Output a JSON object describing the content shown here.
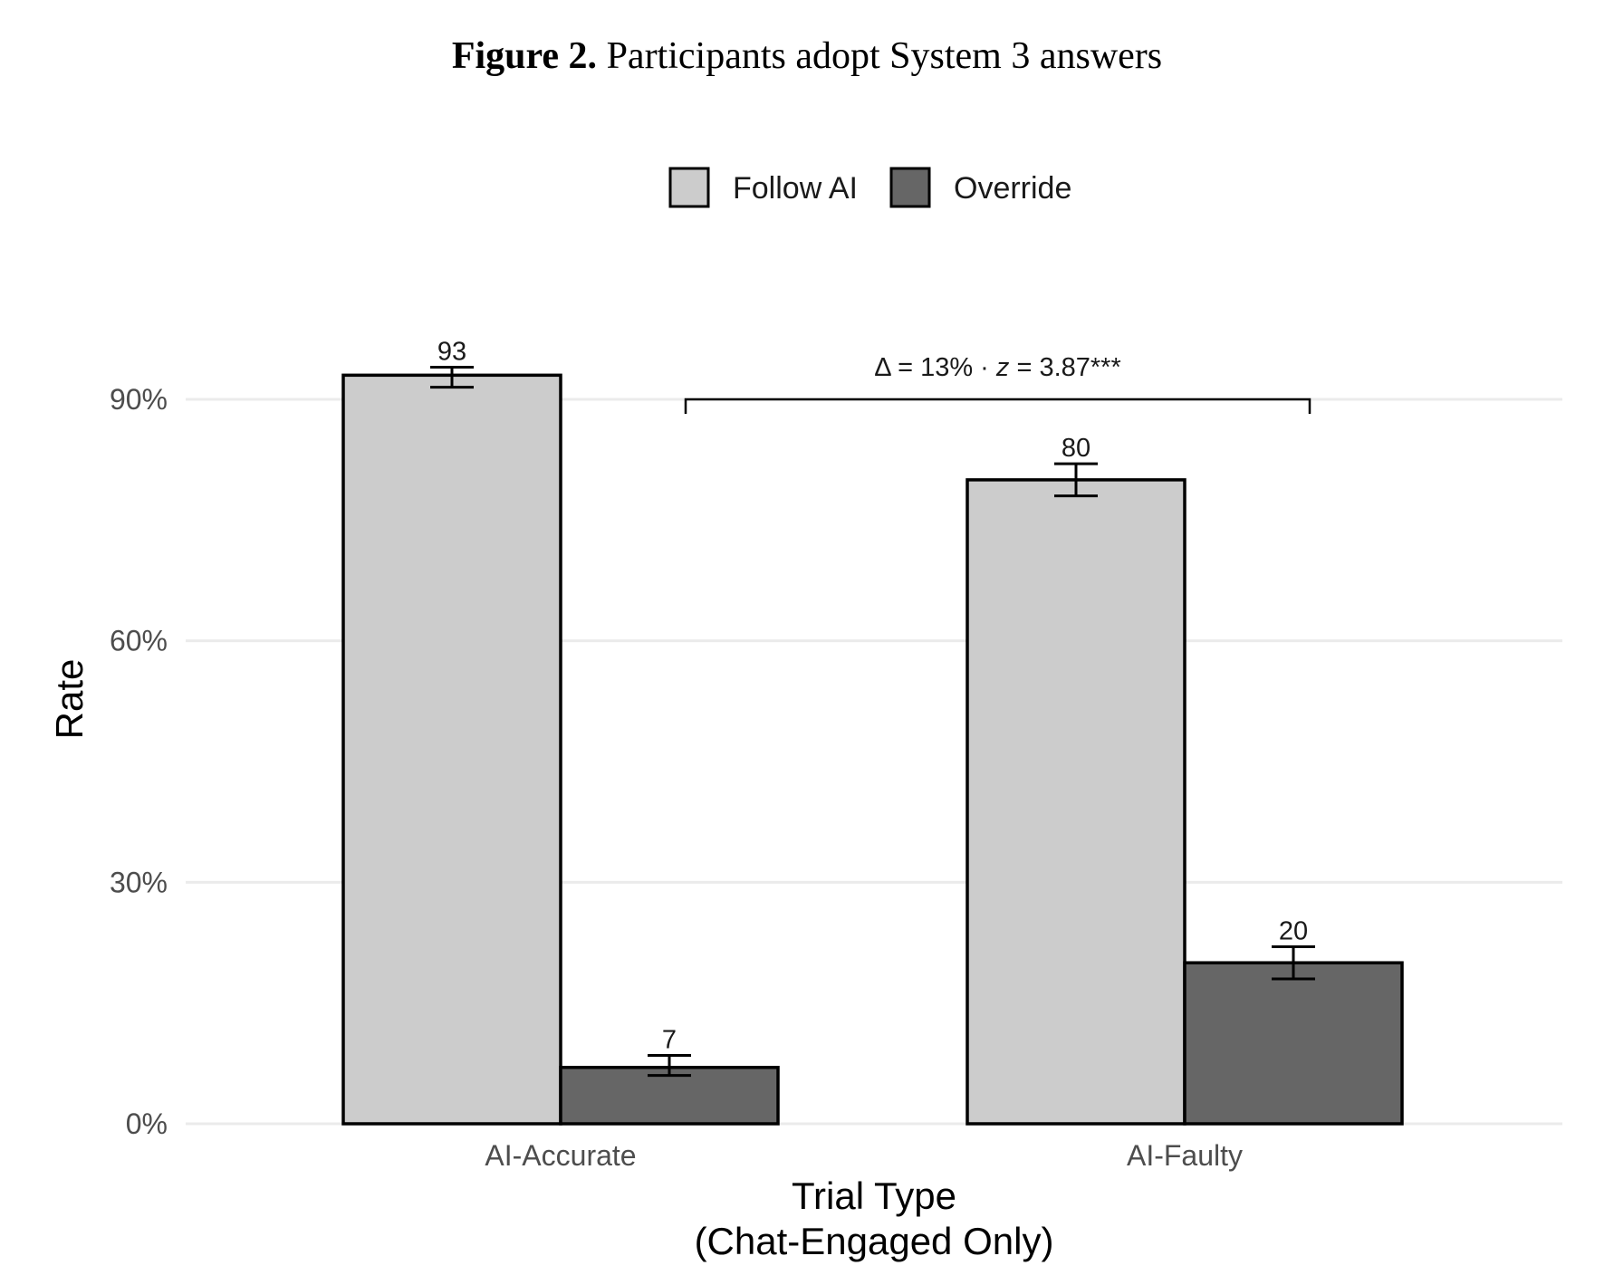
{
  "figure": {
    "label": "Figure 2.",
    "caption": "Participants adopt System 3 answers"
  },
  "chart_data": {
    "type": "bar",
    "title": "",
    "xlabel_lines": [
      "Trial Type",
      "(Chat-Engaged Only)"
    ],
    "ylabel": "Rate",
    "ylim": [
      0,
      100
    ],
    "yticks": [
      {
        "value": 0,
        "label": "0%"
      },
      {
        "value": 30,
        "label": "30%"
      },
      {
        "value": 60,
        "label": "60%"
      },
      {
        "value": 90,
        "label": "90%"
      }
    ],
    "grid": "horizontal",
    "legend_position": "top",
    "categories": [
      "AI-Accurate",
      "AI-Faulty"
    ],
    "series": [
      {
        "name": "Follow AI",
        "color": "#cccccc",
        "values": [
          93,
          80
        ],
        "labels": [
          "93",
          "80"
        ],
        "error_low": [
          91.5,
          78
        ],
        "error_high": [
          94,
          82
        ]
      },
      {
        "name": "Override",
        "color": "#666666",
        "values": [
          7,
          20
        ],
        "labels": [
          "7",
          "20"
        ],
        "error_low": [
          6,
          18
        ],
        "error_high": [
          8.5,
          22
        ]
      }
    ],
    "annotation": {
      "text_delta": "Δ = 13% · ",
      "text_z": "z",
      "text_value": " = 3.87***",
      "from_category": 0,
      "to_category": 1,
      "at_value": 90
    }
  }
}
